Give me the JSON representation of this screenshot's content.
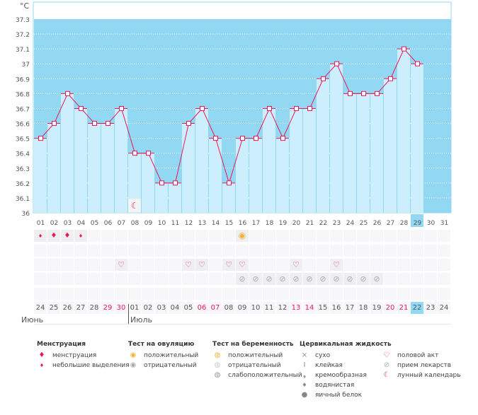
{
  "chart_data": {
    "type": "line",
    "ylabel": "°C",
    "ylim": [
      36,
      37.3
    ],
    "y_ticks": [
      "36",
      "36.1",
      "36.2",
      "36.3",
      "36.4",
      "36.5",
      "36.6",
      "36.7",
      "36.8",
      "36.9",
      "37",
      "37.1",
      "37.2",
      "37.3"
    ],
    "x": [
      "01",
      "02",
      "03",
      "04",
      "05",
      "06",
      "07",
      "08",
      "09",
      "10",
      "11",
      "12",
      "13",
      "14",
      "15",
      "16",
      "17",
      "18",
      "19",
      "20",
      "21",
      "22",
      "23",
      "24",
      "25",
      "26",
      "27",
      "28",
      "29",
      "30",
      "31"
    ],
    "values": [
      36.5,
      36.6,
      36.8,
      36.7,
      36.6,
      36.6,
      36.7,
      36.4,
      36.4,
      36.2,
      36.2,
      36.6,
      36.7,
      36.5,
      36.2,
      36.5,
      36.5,
      36.7,
      36.5,
      36.7,
      36.7,
      36.9,
      37.0,
      36.8,
      36.8,
      36.8,
      36.9,
      37.1,
      37.0,
      null,
      null
    ],
    "highlight_day": "29",
    "grid": true,
    "colors": {
      "background": "#93d8f2",
      "bar": "#cdeefc",
      "line": "#e8185a"
    }
  },
  "markers": {
    "menstruation_heavy": [
      "02",
      "03"
    ],
    "menstruation_light": [
      "01",
      "04"
    ],
    "ovulation_positive": [
      "16"
    ],
    "intercourse": [
      "07",
      "12",
      "13",
      "15",
      "16",
      "20",
      "23"
    ],
    "medication": [
      "16",
      "17",
      "18",
      "19",
      "20",
      "21",
      "22",
      "23",
      "24",
      "25",
      "26"
    ],
    "moon": [
      "08"
    ]
  },
  "calendar": {
    "dates": [
      "24",
      "25",
      "26",
      "27",
      "28",
      "29",
      "30",
      "01",
      "02",
      "03",
      "04",
      "05",
      "06",
      "07",
      "08",
      "09",
      "10",
      "11",
      "12",
      "13",
      "14",
      "15",
      "16",
      "17",
      "18",
      "19",
      "20",
      "21",
      "22",
      "23",
      "24"
    ],
    "weekend_indices": [
      5,
      6,
      12,
      13,
      19,
      20,
      26,
      27
    ],
    "today_index": 28,
    "months": [
      "Июнь",
      "Июль"
    ]
  },
  "legend": {
    "menstruation": {
      "title": "Менструация",
      "items": [
        "менструация",
        "небольшие выделения"
      ]
    },
    "ovulation": {
      "title": "Тест на овуляцию",
      "items": [
        "положительный",
        "отрицательный"
      ]
    },
    "pregnancy": {
      "title": "Тест на беременность",
      "items": [
        "положительный",
        "отрицательный",
        "слабоположительный"
      ]
    },
    "cervical": {
      "title": "Цервикальная жидкость",
      "items": [
        "сухо",
        "клейкая",
        "кремообразная",
        "водянистая",
        "яичный белок"
      ]
    },
    "other": {
      "items": [
        "половой акт",
        "прием лекарств",
        "лунный календарь"
      ]
    }
  }
}
